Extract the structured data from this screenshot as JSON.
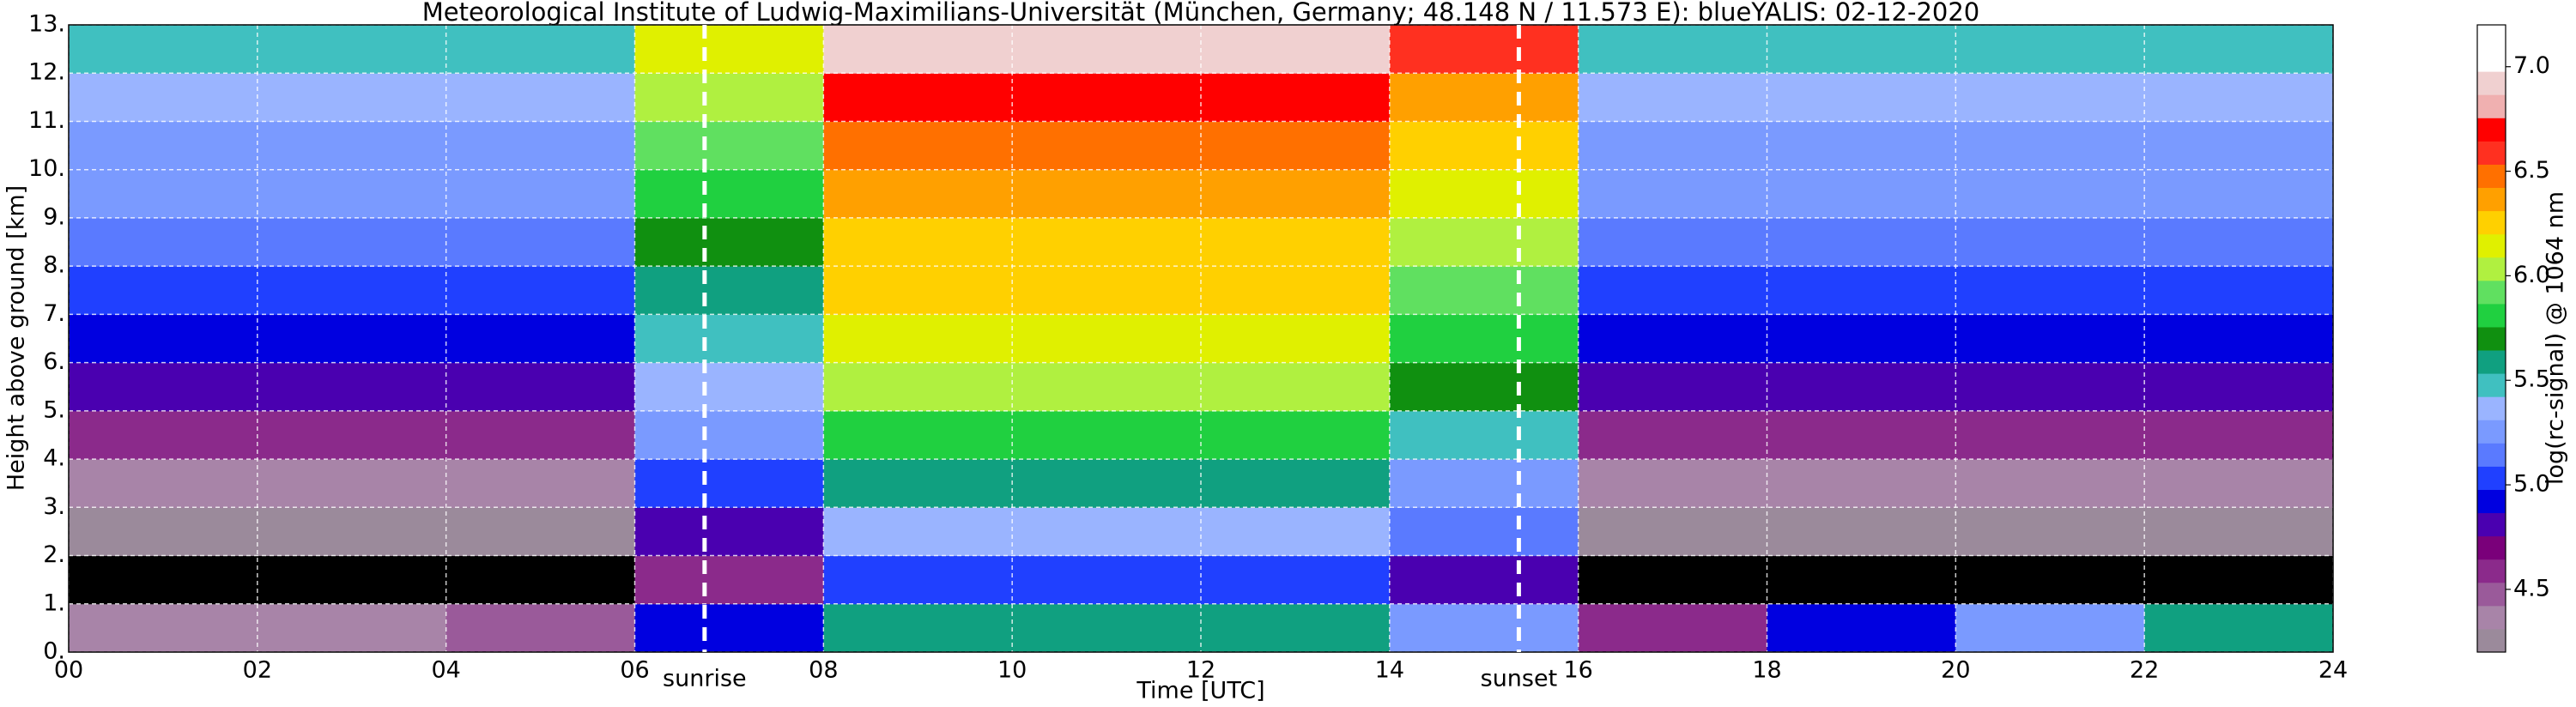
{
  "chart_data": {
    "type": "heatmap",
    "title": "Meteorological Institute of Ludwig-Maximilians-Universität (München, Germany; 48.148 N / 11.573 E):    blueYALIS: 02-12-2020",
    "x_label": "Time [UTC]",
    "y_label": "Height above ground [km]",
    "colorbar_label": "log(rc-signal) @ 1064 nm",
    "x_bins": [
      0,
      2,
      4,
      6,
      8,
      10,
      12,
      14,
      16,
      18,
      20,
      22,
      24
    ],
    "y_bins": [
      0,
      1,
      2,
      3,
      4,
      5,
      6,
      7,
      8,
      9,
      10,
      11,
      12,
      13
    ],
    "z": [
      [
        4.4,
        4.4,
        4.5,
        4.9,
        5.6,
        5.6,
        5.6,
        5.3,
        4.6,
        4.9,
        5.3,
        5.6
      ],
      [
        4.1,
        4.1,
        4.1,
        4.6,
        5.0,
        5.0,
        5.0,
        4.8,
        4.1,
        4.1,
        4.1,
        4.1
      ],
      [
        4.2,
        4.2,
        4.2,
        4.8,
        5.4,
        5.4,
        5.4,
        5.1,
        4.2,
        4.2,
        4.2,
        4.2
      ],
      [
        4.4,
        4.4,
        4.4,
        5.0,
        5.6,
        5.6,
        5.6,
        5.3,
        4.4,
        4.4,
        4.4,
        4.4
      ],
      [
        4.6,
        4.6,
        4.6,
        5.2,
        5.8,
        5.8,
        5.8,
        5.5,
        4.6,
        4.6,
        4.6,
        4.6
      ],
      [
        4.8,
        4.8,
        4.8,
        5.4,
        6.0,
        6.0,
        6.0,
        5.7,
        4.8,
        4.8,
        4.8,
        4.8
      ],
      [
        4.9,
        4.9,
        4.9,
        5.5,
        6.1,
        6.1,
        6.1,
        5.8,
        4.9,
        4.9,
        4.9,
        4.9
      ],
      [
        5.0,
        5.0,
        5.0,
        5.6,
        6.2,
        6.2,
        6.2,
        5.9,
        5.0,
        5.0,
        5.0,
        5.0
      ],
      [
        5.1,
        5.1,
        5.1,
        5.7,
        6.3,
        6.3,
        6.3,
        6.0,
        5.1,
        5.1,
        5.1,
        5.1
      ],
      [
        5.2,
        5.2,
        5.2,
        5.8,
        6.4,
        6.4,
        6.4,
        6.1,
        5.2,
        5.2,
        5.2,
        5.2
      ],
      [
        5.3,
        5.3,
        5.3,
        5.9,
        6.5,
        6.5,
        6.5,
        6.2,
        5.3,
        5.3,
        5.3,
        5.3
      ],
      [
        5.4,
        5.4,
        5.4,
        6.0,
        6.7,
        6.7,
        6.7,
        6.4,
        5.4,
        5.4,
        5.4,
        5.4
      ],
      [
        5.5,
        5.5,
        5.5,
        6.1,
        6.9,
        6.9,
        6.9,
        6.6,
        5.5,
        5.5,
        5.5,
        5.5
      ]
    ],
    "xlim": [
      0,
      24
    ],
    "ylim": [
      0,
      13
    ],
    "xticks": [
      {
        "value": 0,
        "label": "00"
      },
      {
        "value": 2,
        "label": "02"
      },
      {
        "value": 4,
        "label": "04"
      },
      {
        "value": 6,
        "label": "06"
      },
      {
        "value": 8,
        "label": "08"
      },
      {
        "value": 10,
        "label": "10"
      },
      {
        "value": 12,
        "label": "12"
      },
      {
        "value": 14,
        "label": "14"
      },
      {
        "value": 16,
        "label": "16"
      },
      {
        "value": 18,
        "label": "18"
      },
      {
        "value": 20,
        "label": "20"
      },
      {
        "value": 22,
        "label": "22"
      },
      {
        "value": 24,
        "label": "24"
      }
    ],
    "yticks": [
      {
        "value": 0,
        "label": "0."
      },
      {
        "value": 1,
        "label": "1."
      },
      {
        "value": 2,
        "label": "2."
      },
      {
        "value": 3,
        "label": "3."
      },
      {
        "value": 4,
        "label": "4."
      },
      {
        "value": 5,
        "label": "5."
      },
      {
        "value": 6,
        "label": "6."
      },
      {
        "value": 7,
        "label": "7."
      },
      {
        "value": 8,
        "label": "8."
      },
      {
        "value": 9,
        "label": "9."
      },
      {
        "value": 10,
        "label": "10."
      },
      {
        "value": 11,
        "label": "11."
      },
      {
        "value": 12,
        "label": "12."
      },
      {
        "value": 13,
        "label": "13."
      }
    ],
    "clim": [
      4.2,
      7.2
    ],
    "cticks": [
      4.5,
      {
        "value": 5,
        "label": "5.0"
      },
      5.5,
      {
        "value": 6,
        "label": "6.0"
      },
      6.5,
      {
        "value": 7,
        "label": "7.0"
      }
    ],
    "colormap": [
      "#9b8a9b",
      "#a884a8",
      "#9a5a9a",
      "#8b2a8b",
      "#7a007a",
      "#4a00b0",
      "#0000e0",
      "#2040ff",
      "#5a7aff",
      "#7a9aff",
      "#9ab4ff",
      "#40c0c0",
      "#10a080",
      "#109010",
      "#20d040",
      "#60e060",
      "#b0f040",
      "#e0f000",
      "#ffd000",
      "#ffa000",
      "#ff7000",
      "#ff3020",
      "#ff0000",
      "#f0b0b0",
      "#f0d0d0",
      "#ffffff",
      "#ffffff"
    ],
    "under_color": "#000000",
    "grid": true,
    "annotations": [
      {
        "x": 6.74,
        "label": "sunrise"
      },
      {
        "x": 15.37,
        "label": "sunset"
      }
    ]
  }
}
